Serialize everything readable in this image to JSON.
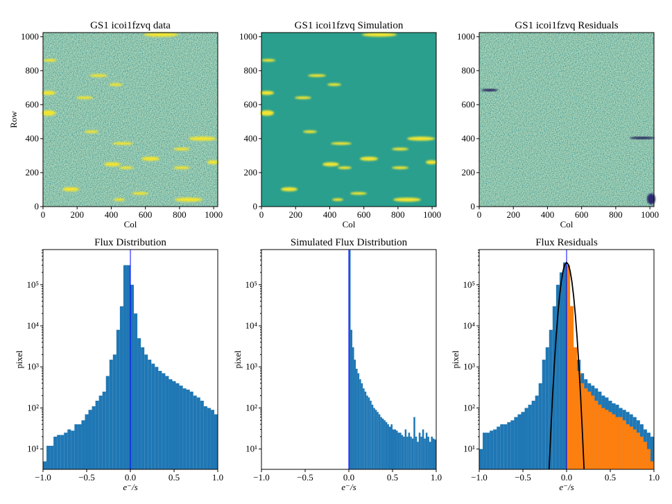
{
  "chart_data": [
    {
      "type": "image",
      "title": "GS1 icoi1fzvq data",
      "xlabel": "Col",
      "ylabel": "Row",
      "xlim": [
        0,
        1024
      ],
      "ylim": [
        0,
        1024
      ],
      "xticks": [
        0,
        200,
        400,
        600,
        800,
        1000
      ],
      "yticks": [
        0,
        200,
        400,
        600,
        800,
        1000
      ]
    },
    {
      "type": "image",
      "title": "GS1 icoi1fzvq Simulation",
      "xlabel": "Col",
      "xlim": [
        0,
        1024
      ],
      "ylim": [
        0,
        1024
      ],
      "xticks": [
        0,
        200,
        400,
        600,
        800,
        1000
      ],
      "yticks": [
        0,
        200,
        400,
        600,
        800,
        1000
      ]
    },
    {
      "type": "image",
      "title": "GS1 icoi1fzvq Residuals",
      "xlabel": "Col",
      "xlim": [
        0,
        1024
      ],
      "ylim": [
        0,
        1024
      ],
      "xticks": [
        0,
        200,
        400,
        600,
        800,
        1000
      ],
      "yticks": [
        0,
        200,
        400,
        600,
        800,
        1000
      ]
    },
    {
      "type": "histogram",
      "title": "Flux Distribution",
      "xlabel": "e⁻/s",
      "ylabel": "pixel",
      "log_y": true,
      "xlim": [
        -1,
        1
      ],
      "ylim": [
        3.2,
        720000
      ],
      "xticks": [
        {
          "value": -1,
          "label": "−1.0"
        },
        {
          "value": -0.5,
          "label": "−0.5"
        },
        {
          "value": 0,
          "label": "0.0"
        },
        {
          "value": 0.5,
          "label": "0.5"
        },
        {
          "value": 1,
          "label": "1.0"
        }
      ],
      "yticks": [
        {
          "value": 10,
          "label": "10¹"
        },
        {
          "value": 100,
          "label": "10²"
        },
        {
          "value": 1000,
          "label": "10³"
        },
        {
          "value": 10000,
          "label": "10⁴"
        },
        {
          "value": 100000,
          "label": "10⁵"
        }
      ],
      "bins": [
        -1,
        -0.96,
        -0.92,
        -0.88,
        -0.84,
        -0.8,
        -0.76,
        -0.72,
        -0.68,
        -0.64,
        -0.6,
        -0.56,
        -0.52,
        -0.48,
        -0.44,
        -0.4,
        -0.36,
        -0.32,
        -0.28,
        -0.24,
        -0.2,
        -0.16,
        -0.12,
        -0.08,
        -0.04,
        0,
        0.04,
        0.08,
        0.12,
        0.16,
        0.2,
        0.24,
        0.28,
        0.32,
        0.36,
        0.4,
        0.44,
        0.48,
        0.52,
        0.56,
        0.6,
        0.64,
        0.68,
        0.72,
        0.76,
        0.8,
        0.84,
        0.88,
        0.92,
        0.96,
        1
      ],
      "series": [
        {
          "color": "#1f77b4",
          "values": [
            5,
            12,
            12,
            20,
            22,
            22,
            25,
            30,
            28,
            40,
            40,
            50,
            70,
            90,
            110,
            150,
            200,
            250,
            600,
            1500,
            2000,
            8000,
            30000,
            300000,
            300000,
            100000,
            20000,
            5000,
            3000,
            2000,
            1500,
            1200,
            1000,
            800,
            700,
            600,
            500,
            450,
            400,
            350,
            300,
            280,
            250,
            200,
            180,
            150,
            110,
            100,
            90,
            70
          ]
        }
      ],
      "vline": {
        "x": 0,
        "color": "#0000ff"
      }
    },
    {
      "type": "histogram",
      "title": "Simulated Flux Distribution",
      "xlabel": "e⁻/s",
      "ylabel": "pixel",
      "log_y": true,
      "xlim": [
        -1,
        1
      ],
      "ylim": [
        3.2,
        720000
      ],
      "xticks": [
        {
          "value": -1,
          "label": "−1.0"
        },
        {
          "value": -0.5,
          "label": "−0.5"
        },
        {
          "value": 0,
          "label": "0.0"
        },
        {
          "value": 0.5,
          "label": "0.5"
        },
        {
          "value": 1,
          "label": "1.0"
        }
      ],
      "yticks": [
        {
          "value": 10,
          "label": "10¹"
        },
        {
          "value": 100,
          "label": "10²"
        },
        {
          "value": 1000,
          "label": "10³"
        },
        {
          "value": 10000,
          "label": "10⁴"
        },
        {
          "value": 100000,
          "label": "10⁵"
        }
      ],
      "bins": [
        0,
        0.02,
        0.04,
        0.06,
        0.08,
        0.1,
        0.12,
        0.14,
        0.16,
        0.18,
        0.2,
        0.22,
        0.24,
        0.26,
        0.28,
        0.3,
        0.32,
        0.34,
        0.36,
        0.38,
        0.4,
        0.42,
        0.44,
        0.46,
        0.48,
        0.5,
        0.52,
        0.54,
        0.56,
        0.58,
        0.6,
        0.62,
        0.64,
        0.66,
        0.68,
        0.7,
        0.72,
        0.74,
        0.76,
        0.78,
        0.8,
        0.82,
        0.84,
        0.86,
        0.88,
        0.9,
        0.92,
        0.94,
        0.96,
        0.98,
        1
      ],
      "series": [
        {
          "color": "#1f77b4",
          "values": [
            700000,
            8000,
            3000,
            1500,
            900,
            700,
            500,
            400,
            300,
            250,
            200,
            180,
            150,
            120,
            100,
            90,
            80,
            70,
            60,
            55,
            50,
            45,
            40,
            35,
            40,
            30,
            30,
            28,
            25,
            25,
            22,
            20,
            30,
            20,
            25,
            20,
            18,
            60,
            20,
            15,
            25,
            20,
            30,
            18,
            25,
            20,
            15,
            20,
            18,
            17
          ]
        }
      ],
      "vline": {
        "x": 0,
        "color": "#0000ff"
      }
    },
    {
      "type": "histogram",
      "title": "Flux Residuals",
      "xlabel": "e⁻/s",
      "ylabel": "pixel",
      "log_y": true,
      "xlim": [
        -1,
        1
      ],
      "ylim": [
        3.2,
        720000
      ],
      "xticks": [
        {
          "value": -1,
          "label": "−1.0"
        },
        {
          "value": -0.5,
          "label": "−0.5"
        },
        {
          "value": 0,
          "label": "0.0"
        },
        {
          "value": 0.5,
          "label": "0.5"
        },
        {
          "value": 1,
          "label": "1.0"
        }
      ],
      "yticks": [
        {
          "value": 10,
          "label": "10¹"
        },
        {
          "value": 100,
          "label": "10²"
        },
        {
          "value": 1000,
          "label": "10³"
        },
        {
          "value": 10000,
          "label": "10⁴"
        },
        {
          "value": 100000,
          "label": "10⁵"
        }
      ],
      "bins": [
        -1,
        -0.96,
        -0.92,
        -0.88,
        -0.84,
        -0.8,
        -0.76,
        -0.72,
        -0.68,
        -0.64,
        -0.6,
        -0.56,
        -0.52,
        -0.48,
        -0.44,
        -0.4,
        -0.36,
        -0.32,
        -0.28,
        -0.24,
        -0.2,
        -0.16,
        -0.12,
        -0.08,
        -0.04,
        0,
        0.04,
        0.08,
        0.12,
        0.16,
        0.2,
        0.24,
        0.28,
        0.32,
        0.36,
        0.4,
        0.44,
        0.48,
        0.52,
        0.56,
        0.6,
        0.64,
        0.68,
        0.72,
        0.76,
        0.8,
        0.84,
        0.88,
        0.92,
        0.96,
        1
      ],
      "series": [
        {
          "color": "#1f77b4",
          "values": [
            10,
            25,
            25,
            28,
            30,
            35,
            40,
            40,
            45,
            50,
            60,
            70,
            80,
            100,
            120,
            150,
            200,
            400,
            1500,
            3000,
            8000,
            30000,
            100000,
            200000,
            350000,
            200000,
            30000,
            3000,
            1500,
            700,
            500,
            400,
            350,
            300,
            250,
            200,
            180,
            150,
            130,
            120,
            100,
            90,
            80,
            70,
            60,
            50,
            40,
            30,
            25,
            20
          ]
        },
        {
          "color": "#ff7f0e",
          "values": [
            null,
            null,
            null,
            null,
            null,
            null,
            null,
            null,
            null,
            null,
            null,
            null,
            null,
            null,
            null,
            null,
            null,
            null,
            null,
            null,
            null,
            null,
            null,
            null,
            null,
            300000,
            30000,
            3000,
            800,
            400,
            300,
            250,
            200,
            150,
            120,
            100,
            90,
            80,
            70,
            60,
            60,
            50,
            40,
            35,
            30,
            25,
            20,
            15,
            10,
            5
          ]
        }
      ],
      "lines": [
        {
          "color": "#000000",
          "x": [
            -0.2,
            -0.18,
            -0.16,
            -0.14,
            -0.12,
            -0.1,
            -0.08,
            -0.06,
            -0.04,
            -0.02,
            0,
            0.02,
            0.04,
            0.06,
            0.08,
            0.1,
            0.12,
            0.14,
            0.16,
            0.18,
            0.2
          ],
          "y": [
            3,
            27.6,
            200,
            1150,
            5260,
            18900,
            54000,
            122000,
            219000,
            311000,
            350000,
            311000,
            219000,
            122000,
            54000,
            18900,
            5260,
            1150,
            200,
            27.6,
            3
          ]
        }
      ],
      "vline": {
        "x": 0,
        "color": "#0000ff"
      }
    }
  ]
}
